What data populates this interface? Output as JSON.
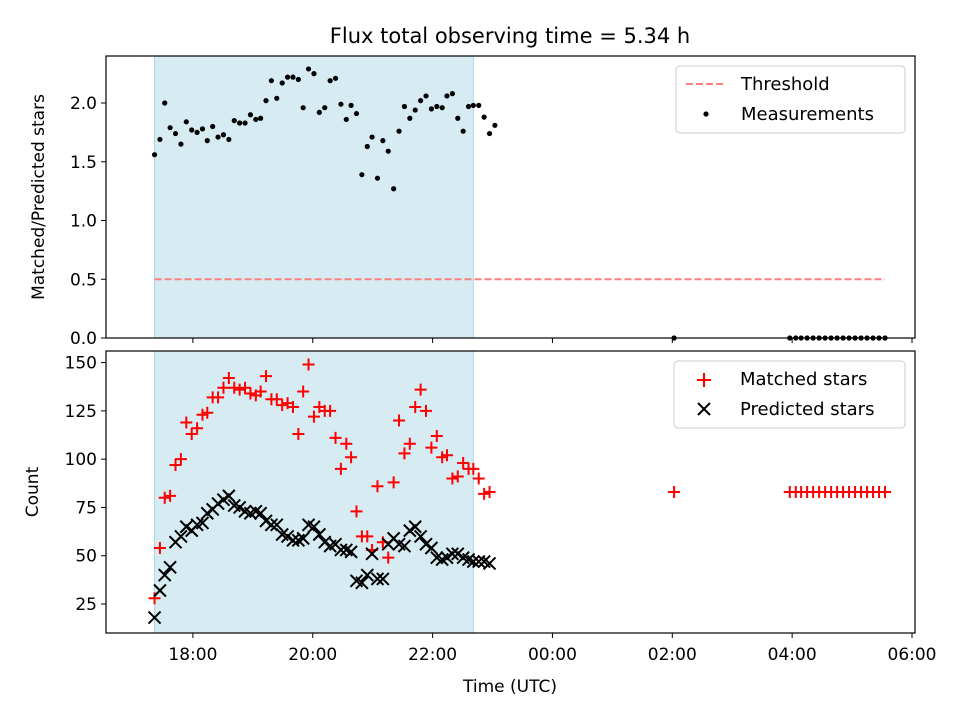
{
  "title": "Flux total observing time = 5.34 h",
  "xlabel": "Time (UTC)",
  "x_unit": "hours since 00:00 on the first night (18:00 = 18.0, 02:00 = 26.0)",
  "x_range": [
    16.55,
    30.05
  ],
  "x_ticks": [
    {
      "value": 18,
      "label": "18:00"
    },
    {
      "value": 20,
      "label": "20:00"
    },
    {
      "value": 22,
      "label": "22:00"
    },
    {
      "value": 24,
      "label": "00:00"
    },
    {
      "value": 26,
      "label": "02:00"
    },
    {
      "value": 28,
      "label": "04:00"
    },
    {
      "value": 30,
      "label": "06:00"
    }
  ],
  "observing_window": {
    "start": 17.36,
    "end": 22.68,
    "color": "#add8e6"
  },
  "colors": {
    "threshold": "#ff7f7f",
    "measurements": "#000000",
    "matched": "#ff0000",
    "predicted": "#000000",
    "shade": "#add8e6"
  },
  "chart_data": [
    {
      "type": "scatter",
      "panel": "top",
      "ylabel": "Matched/Predicted stars",
      "ylim": [
        0.0,
        2.4
      ],
      "y_ticks": [
        0.0,
        0.5,
        1.0,
        1.5,
        2.0
      ],
      "y_tick_labels": [
        "0.0",
        "0.5",
        "1.0",
        "1.5",
        "2.0"
      ],
      "legend": {
        "position": "top-right",
        "entries": [
          "Threshold",
          "Measurements"
        ]
      },
      "threshold": {
        "name": "Threshold",
        "value": 0.5,
        "x_range": [
          17.36,
          29.55
        ],
        "style": "dashed"
      },
      "series": [
        {
          "name": "Measurements",
          "points": [
            [
              17.36,
              1.56
            ],
            [
              17.45,
              1.69
            ],
            [
              17.53,
              2.0
            ],
            [
              17.62,
              1.79
            ],
            [
              17.71,
              1.74
            ],
            [
              17.8,
              1.65
            ],
            [
              17.89,
              1.84
            ],
            [
              17.98,
              1.77
            ],
            [
              18.07,
              1.75
            ],
            [
              18.16,
              1.78
            ],
            [
              18.24,
              1.68
            ],
            [
              18.33,
              1.8
            ],
            [
              18.42,
              1.71
            ],
            [
              18.51,
              1.73
            ],
            [
              18.6,
              1.69
            ],
            [
              18.69,
              1.85
            ],
            [
              18.78,
              1.83
            ],
            [
              18.87,
              1.83
            ],
            [
              18.96,
              1.9
            ],
            [
              19.05,
              1.86
            ],
            [
              19.13,
              1.87
            ],
            [
              19.22,
              2.02
            ],
            [
              19.31,
              2.19
            ],
            [
              19.4,
              2.04
            ],
            [
              19.49,
              2.17
            ],
            [
              19.58,
              2.22
            ],
            [
              19.67,
              2.22
            ],
            [
              19.76,
              2.2
            ],
            [
              19.84,
              1.96
            ],
            [
              19.93,
              2.29
            ],
            [
              20.02,
              2.25
            ],
            [
              20.11,
              1.92
            ],
            [
              20.2,
              1.96
            ],
            [
              20.29,
              2.19
            ],
            [
              20.38,
              2.21
            ],
            [
              20.47,
              1.99
            ],
            [
              20.56,
              1.86
            ],
            [
              20.64,
              1.98
            ],
            [
              20.73,
              1.91
            ],
            [
              20.82,
              1.39
            ],
            [
              20.91,
              1.63
            ],
            [
              20.99,
              1.71
            ],
            [
              21.08,
              1.36
            ],
            [
              21.17,
              1.68
            ],
            [
              21.26,
              1.59
            ],
            [
              21.35,
              1.27
            ],
            [
              21.44,
              1.76
            ],
            [
              21.53,
              1.97
            ],
            [
              21.62,
              1.87
            ],
            [
              21.71,
              1.94
            ],
            [
              21.8,
              2.02
            ],
            [
              21.89,
              2.06
            ],
            [
              21.98,
              1.95
            ],
            [
              22.07,
              1.97
            ],
            [
              22.16,
              1.96
            ],
            [
              22.24,
              2.06
            ],
            [
              22.33,
              2.08
            ],
            [
              22.42,
              1.87
            ],
            [
              22.51,
              1.76
            ],
            [
              22.6,
              1.97
            ],
            [
              22.68,
              1.98
            ],
            [
              22.77,
              1.98
            ],
            [
              22.86,
              1.88
            ],
            [
              22.95,
              1.74
            ],
            [
              23.04,
              1.81
            ],
            [
              26.03,
              0.0
            ],
            [
              27.96,
              0.0
            ],
            [
              28.06,
              0.0
            ],
            [
              28.15,
              0.0
            ],
            [
              28.25,
              0.0
            ],
            [
              28.35,
              0.0
            ],
            [
              28.45,
              0.0
            ],
            [
              28.55,
              0.0
            ],
            [
              28.65,
              0.0
            ],
            [
              28.75,
              0.0
            ],
            [
              28.85,
              0.0
            ],
            [
              28.95,
              0.0
            ],
            [
              29.05,
              0.0
            ],
            [
              29.15,
              0.0
            ],
            [
              29.25,
              0.0
            ],
            [
              29.35,
              0.0
            ],
            [
              29.45,
              0.0
            ],
            [
              29.55,
              0.0
            ]
          ]
        }
      ]
    },
    {
      "type": "scatter",
      "panel": "bottom",
      "ylabel": "Count",
      "ylim": [
        10,
        156
      ],
      "y_ticks": [
        25,
        50,
        75,
        100,
        125,
        150
      ],
      "y_tick_labels": [
        "25",
        "50",
        "75",
        "100",
        "125",
        "150"
      ],
      "legend": {
        "position": "top-right",
        "entries": [
          "Matched stars",
          "Predicted stars"
        ]
      },
      "series": [
        {
          "name": "Matched stars",
          "marker": "plus",
          "points": [
            [
              17.36,
              28
            ],
            [
              17.45,
              54
            ],
            [
              17.53,
              80
            ],
            [
              17.62,
              81
            ],
            [
              17.71,
              97
            ],
            [
              17.8,
              100
            ],
            [
              17.89,
              119
            ],
            [
              17.98,
              113
            ],
            [
              18.07,
              116
            ],
            [
              18.16,
              123
            ],
            [
              18.24,
              124
            ],
            [
              18.33,
              132
            ],
            [
              18.42,
              132
            ],
            [
              18.51,
              137
            ],
            [
              18.6,
              142
            ],
            [
              18.69,
              137
            ],
            [
              18.78,
              136
            ],
            [
              18.87,
              137
            ],
            [
              18.96,
              134
            ],
            [
              19.05,
              133
            ],
            [
              19.13,
              135
            ],
            [
              19.22,
              143
            ],
            [
              19.31,
              131
            ],
            [
              19.4,
              131
            ],
            [
              19.49,
              128
            ],
            [
              19.58,
              129
            ],
            [
              19.67,
              127
            ],
            [
              19.76,
              113
            ],
            [
              19.84,
              135
            ],
            [
              19.93,
              149
            ],
            [
              20.02,
              122
            ],
            [
              20.11,
              127
            ],
            [
              20.2,
              125
            ],
            [
              20.29,
              125
            ],
            [
              20.38,
              111
            ],
            [
              20.47,
              95
            ],
            [
              20.56,
              108
            ],
            [
              20.64,
              101
            ],
            [
              20.73,
              73
            ],
            [
              20.82,
              60
            ],
            [
              20.91,
              60
            ],
            [
              20.99,
              53
            ],
            [
              21.08,
              86
            ],
            [
              21.17,
              57
            ],
            [
              21.26,
              49
            ],
            [
              21.35,
              88
            ],
            [
              21.44,
              120
            ],
            [
              21.53,
              103
            ],
            [
              21.62,
              108
            ],
            [
              21.71,
              127
            ],
            [
              21.8,
              136
            ],
            [
              21.89,
              125
            ],
            [
              21.98,
              106
            ],
            [
              22.07,
              112
            ],
            [
              22.16,
              101
            ],
            [
              22.24,
              102
            ],
            [
              22.33,
              90
            ],
            [
              22.42,
              91
            ],
            [
              22.51,
              98
            ],
            [
              22.6,
              95
            ],
            [
              22.68,
              95
            ],
            [
              22.77,
              90
            ],
            [
              22.86,
              82
            ],
            [
              22.95,
              83
            ],
            [
              26.03,
              83
            ],
            [
              27.96,
              83
            ],
            [
              28.06,
              83
            ],
            [
              28.15,
              83
            ],
            [
              28.25,
              83
            ],
            [
              28.35,
              83
            ],
            [
              28.45,
              83
            ],
            [
              28.55,
              83
            ],
            [
              28.65,
              83
            ],
            [
              28.75,
              83
            ],
            [
              28.85,
              83
            ],
            [
              28.95,
              83
            ],
            [
              29.05,
              83
            ],
            [
              29.15,
              83
            ],
            [
              29.25,
              83
            ],
            [
              29.35,
              83
            ],
            [
              29.45,
              83
            ],
            [
              29.55,
              83
            ]
          ]
        },
        {
          "name": "Predicted stars",
          "marker": "x",
          "points": [
            [
              17.36,
              18
            ],
            [
              17.45,
              32
            ],
            [
              17.53,
              40
            ],
            [
              17.62,
              44
            ],
            [
              17.71,
              57
            ],
            [
              17.8,
              60
            ],
            [
              17.89,
              65
            ],
            [
              17.98,
              63
            ],
            [
              18.07,
              66
            ],
            [
              18.16,
              67
            ],
            [
              18.24,
              72
            ],
            [
              18.33,
              74
            ],
            [
              18.42,
              77
            ],
            [
              18.51,
              79
            ],
            [
              18.6,
              81
            ],
            [
              18.69,
              76
            ],
            [
              18.78,
              75
            ],
            [
              18.87,
              73
            ],
            [
              18.96,
              72
            ],
            [
              19.05,
              73
            ],
            [
              19.13,
              72
            ],
            [
              19.22,
              68
            ],
            [
              19.31,
              66
            ],
            [
              19.4,
              66
            ],
            [
              19.49,
              61
            ],
            [
              19.58,
              60
            ],
            [
              19.67,
              58
            ],
            [
              19.76,
              58
            ],
            [
              19.84,
              59
            ],
            [
              19.93,
              66
            ],
            [
              20.02,
              65
            ],
            [
              20.11,
              61
            ],
            [
              20.2,
              57
            ],
            [
              20.29,
              55
            ],
            [
              20.38,
              56
            ],
            [
              20.47,
              53
            ],
            [
              20.56,
              53
            ],
            [
              20.64,
              52
            ],
            [
              20.73,
              37
            ],
            [
              20.82,
              36
            ],
            [
              20.91,
              40
            ],
            [
              20.99,
              51
            ],
            [
              21.08,
              38
            ],
            [
              21.17,
              38
            ],
            [
              21.26,
              56
            ],
            [
              21.35,
              59
            ],
            [
              21.44,
              56
            ],
            [
              21.53,
              55
            ],
            [
              21.62,
              63
            ],
            [
              21.71,
              65
            ],
            [
              21.8,
              60
            ],
            [
              21.89,
              56
            ],
            [
              21.98,
              54
            ],
            [
              22.07,
              49
            ],
            [
              22.16,
              48
            ],
            [
              22.24,
              49
            ],
            [
              22.33,
              51
            ],
            [
              22.42,
              51
            ],
            [
              22.51,
              49
            ],
            [
              22.6,
              48
            ],
            [
              22.68,
              47
            ],
            [
              22.77,
              47
            ],
            [
              22.86,
              47
            ],
            [
              22.95,
              46
            ]
          ]
        }
      ]
    }
  ]
}
